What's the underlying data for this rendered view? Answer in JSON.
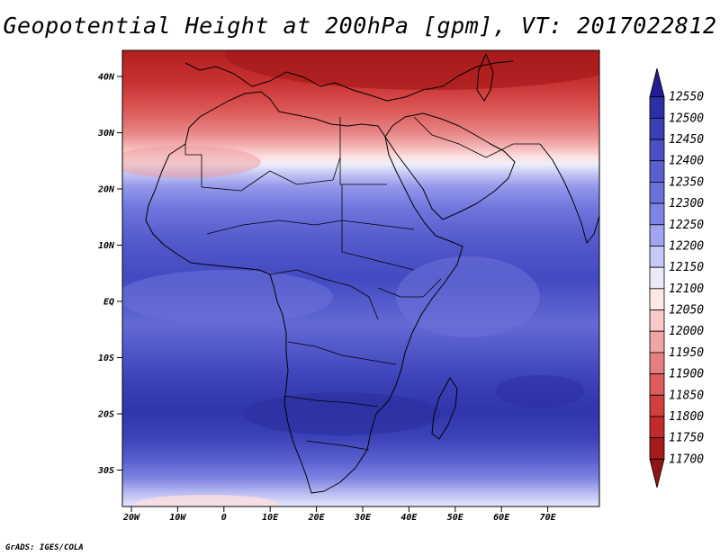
{
  "title": "Geopotential Height at 200hPa [gpm], VT: 2017022812",
  "footer": "GrADS: IGES/COLA",
  "map": {
    "lat_ticks": [
      "40N",
      "30N",
      "20N",
      "10N",
      "EQ",
      "10S",
      "20S",
      "30S"
    ],
    "lon_ticks": [
      "20W",
      "10W",
      "0",
      "10E",
      "20E",
      "30E",
      "40E",
      "50E",
      "60E",
      "70E"
    ]
  },
  "colorbar": {
    "levels": [
      "12550",
      "12500",
      "12450",
      "12400",
      "12350",
      "12300",
      "12250",
      "12200",
      "12150",
      "12100",
      "12050",
      "12000",
      "11950",
      "11900",
      "11850",
      "11800",
      "11750",
      "11700"
    ],
    "colors": [
      "#241c8f",
      "#2c2fa6",
      "#3a3fb6",
      "#4a4fc4",
      "#5a5fcf",
      "#6b70da",
      "#8085e4",
      "#a1a4ee",
      "#c6c8f5",
      "#eaeafb",
      "#fde8e8",
      "#f8c9c9",
      "#f0a5a5",
      "#e57f7f",
      "#dc5b5b",
      "#d23f3f",
      "#c22b2b",
      "#a61b1b",
      "#8f1414"
    ]
  }
}
